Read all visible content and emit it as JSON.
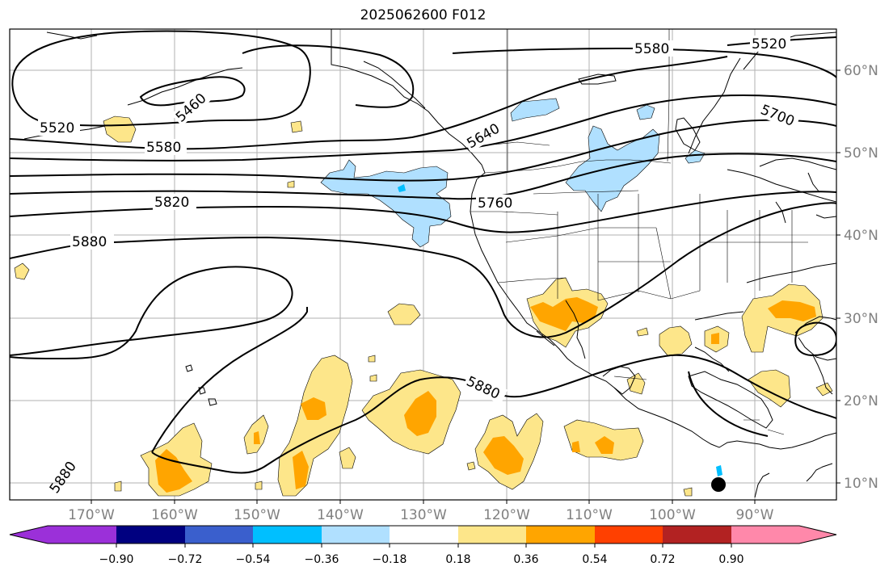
{
  "map": {
    "title": "2025062600 F012",
    "longitude_labels": [
      "170°W",
      "160°W",
      "150°W",
      "140°W",
      "130°W",
      "120°W",
      "110°W",
      "100°W",
      "90°W"
    ],
    "latitude_labels": [
      "60°N",
      "50°N",
      "40°N",
      "30°N",
      "20°N",
      "10°N"
    ],
    "contour_labels": [
      "5580",
      "5520",
      "5460",
      "5520",
      "5580",
      "5640",
      "5700",
      "5820",
      "5760",
      "5880",
      "5880",
      "5880"
    ],
    "colors": {
      "contour": "#000000",
      "coastline": "#000000",
      "gridline": "#a0a0a0",
      "tick_label": "#808080"
    }
  },
  "colorbar": {
    "tick_labels": [
      "−0.90",
      "−0.72",
      "−0.54",
      "−0.36",
      "−0.18",
      "0.18",
      "0.36",
      "0.54",
      "0.72",
      "0.90"
    ],
    "colors": [
      "#9b30d9",
      "#000080",
      "#3a5fcd",
      "#00bfff",
      "#b0e0ff",
      "#ffffff",
      "#fde68a",
      "#ffa500",
      "#ff4000",
      "#b22222",
      "#ff88aa"
    ]
  }
}
